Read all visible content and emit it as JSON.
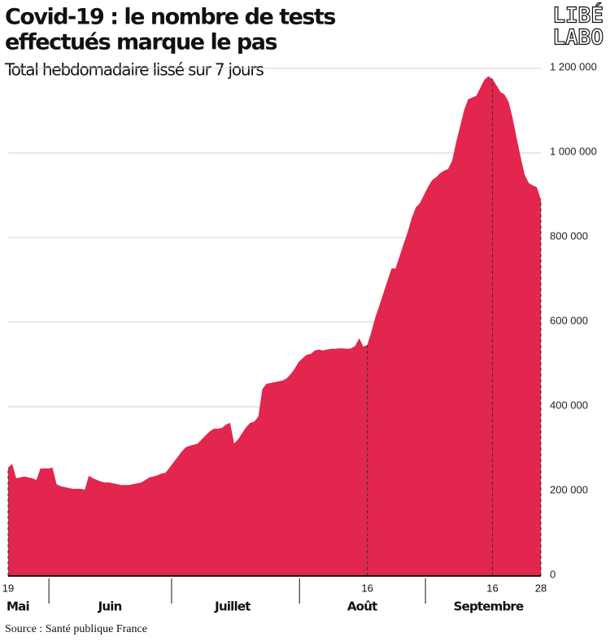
{
  "chart_data": {
    "type": "area",
    "title": [
      "Covid-19 : le nombre de tests",
      "effectués marque le pas"
    ],
    "subtitle": "Total hebdomadaire lissé sur 7 jours",
    "source": "Source : Santé publique France",
    "logo": [
      "LIBÉ",
      "LABO"
    ],
    "color": "#e2264d",
    "x": [
      0,
      1,
      2,
      3,
      4,
      5,
      6,
      7,
      8,
      9,
      10,
      11,
      12,
      13,
      14,
      15,
      16,
      17,
      18,
      19,
      20,
      21,
      22,
      23,
      24,
      25,
      26,
      27,
      28,
      29,
      30,
      31,
      32,
      33,
      34,
      35,
      36,
      37,
      38,
      39,
      40,
      41,
      42,
      43,
      44,
      45,
      46,
      47,
      48,
      49,
      50,
      51,
      52,
      53,
      54,
      55,
      56,
      57,
      58,
      59,
      60,
      61,
      62,
      63,
      64,
      65,
      66,
      67,
      68,
      69,
      70,
      71,
      72,
      73,
      74,
      75,
      76,
      77,
      78,
      79,
      80,
      81,
      82,
      83,
      84,
      85,
      86,
      87,
      88,
      89,
      90,
      91,
      92,
      93,
      94,
      95,
      96,
      97,
      98,
      99,
      100,
      101,
      102,
      103,
      104,
      105,
      106,
      107,
      108,
      109,
      110,
      111,
      112,
      113,
      114,
      115,
      116,
      117,
      118,
      119,
      120,
      121,
      122,
      123,
      124,
      125,
      126,
      127,
      128,
      129,
      130,
      131,
      132
    ],
    "values": [
      256000,
      265000,
      231000,
      233000,
      235000,
      233000,
      231000,
      227000,
      254000,
      254000,
      254000,
      256000,
      217000,
      212000,
      210000,
      208000,
      206000,
      206000,
      206000,
      204000,
      237000,
      231000,
      227000,
      223000,
      221000,
      221000,
      219000,
      217000,
      215000,
      215000,
      215000,
      217000,
      219000,
      221000,
      227000,
      233000,
      235000,
      238000,
      242000,
      244000,
      256000,
      269000,
      281000,
      294000,
      304000,
      308000,
      310000,
      313000,
      323000,
      333000,
      342000,
      348000,
      348000,
      350000,
      358000,
      362000,
      313000,
      323000,
      338000,
      352000,
      362000,
      365000,
      377000,
      442000,
      454000,
      456000,
      458000,
      460000,
      462000,
      467000,
      477000,
      490000,
      506000,
      515000,
      523000,
      525000,
      533000,
      535000,
      533000,
      535000,
      537000,
      537000,
      538000,
      538000,
      537000,
      538000,
      544000,
      562000,
      542000,
      546000,
      577000,
      612000,
      640000,
      669000,
      698000,
      727000,
      727000,
      756000,
      785000,
      813000,
      846000,
      871000,
      881000,
      900000,
      919000,
      935000,
      942000,
      952000,
      958000,
      962000,
      981000,
      1025000,
      1063000,
      1102000,
      1127000,
      1131000,
      1135000,
      1154000,
      1173000,
      1181000,
      1175000,
      1160000,
      1144000,
      1138000,
      1121000,
      1083000,
      1035000,
      990000,
      948000,
      929000,
      923000,
      919000,
      890000
    ],
    "xlim": [
      0,
      132
    ],
    "xticks": [
      {
        "value": 0,
        "label": "19"
      },
      {
        "value": 89,
        "label": "16"
      },
      {
        "value": 120,
        "label": "16"
      },
      {
        "value": 132,
        "label": "28"
      }
    ],
    "xminorticks": [
      10.1,
      40.5,
      72.2,
      103.4
    ],
    "month_labels": [
      {
        "value": 2.4,
        "label": "Mai"
      },
      {
        "value": 25.2,
        "label": "Juin"
      },
      {
        "value": 55.6,
        "label": "Juillet"
      },
      {
        "value": 87.7,
        "label": "Août"
      },
      {
        "value": 119,
        "label": "Septembre"
      }
    ],
    "ylim": [
      0,
      1200000
    ],
    "yticks": [
      0,
      {
        "value": 200000,
        "label": "200 000"
      },
      {
        "value": 400000,
        "label": "400 000"
      },
      {
        "value": 600000,
        "label": "600 000"
      },
      {
        "value": 800000,
        "label": "800 000"
      },
      {
        "value": 1000000,
        "label": "1 000 000"
      },
      {
        "value": 1200000,
        "label": "1 200 000"
      }
    ],
    "grid": true
  }
}
